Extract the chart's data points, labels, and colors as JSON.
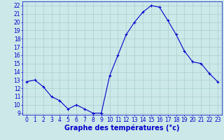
{
  "x": [
    0,
    1,
    2,
    3,
    4,
    5,
    6,
    7,
    8,
    9,
    10,
    11,
    12,
    13,
    14,
    15,
    16,
    17,
    18,
    19,
    20,
    21,
    22,
    23
  ],
  "y": [
    12.8,
    13.0,
    12.2,
    11.0,
    10.5,
    9.5,
    10.0,
    9.5,
    9.0,
    9.0,
    13.5,
    16.0,
    18.5,
    20.0,
    21.2,
    22.0,
    21.8,
    20.2,
    18.5,
    16.5,
    15.2,
    15.0,
    13.8,
    12.8
  ],
  "line_color": "#0000cc",
  "marker": "+",
  "marker_size": 3,
  "marker_color": "#0000cc",
  "bg_color": "#cce8e8",
  "grid_color": "#aacfcf",
  "xlabel": "Graphe des températures (°c)",
  "xlabel_color": "#0000cc",
  "xlabel_fontsize": 7,
  "tick_color": "#0000cc",
  "tick_fontsize": 5.5,
  "ylim": [
    8.8,
    22.5
  ],
  "xlim": [
    -0.5,
    23.5
  ],
  "yticks": [
    9,
    10,
    11,
    12,
    13,
    14,
    15,
    16,
    17,
    18,
    19,
    20,
    21,
    22
  ],
  "xticks": [
    0,
    1,
    2,
    3,
    4,
    5,
    6,
    7,
    8,
    9,
    10,
    11,
    12,
    13,
    14,
    15,
    16,
    17,
    18,
    19,
    20,
    21,
    22,
    23
  ]
}
